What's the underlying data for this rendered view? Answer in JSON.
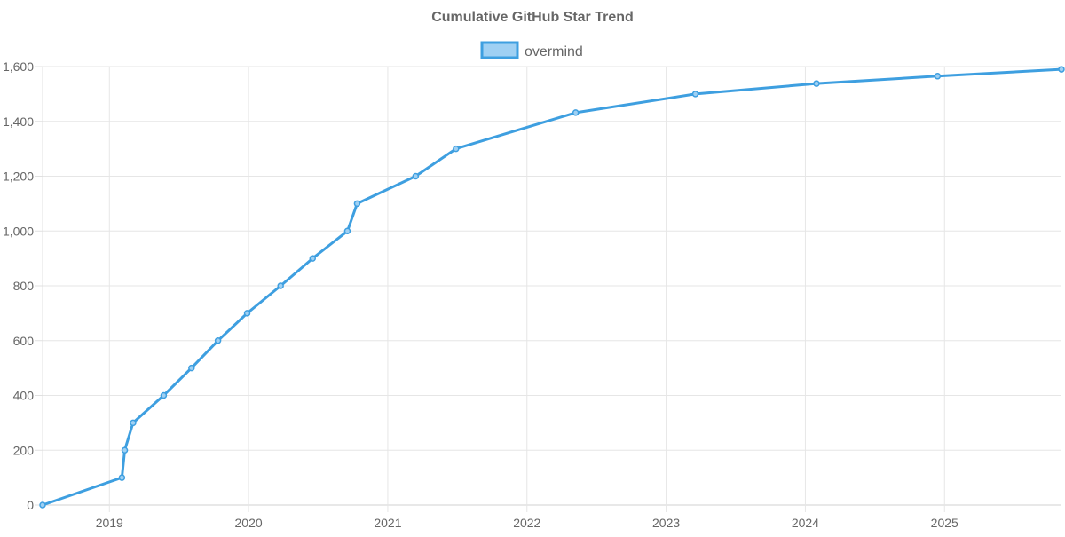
{
  "chart_data": {
    "type": "line",
    "title": "Cumulative GitHub Star Trend",
    "xlabel": "",
    "ylabel": "",
    "x_domain": [
      2018.52,
      2025.84
    ],
    "ylim": [
      0,
      1600
    ],
    "y_ticks": [
      0,
      200,
      400,
      600,
      800,
      1000,
      1200,
      1400,
      1600
    ],
    "y_tick_labels": [
      "0",
      "200",
      "400",
      "600",
      "800",
      "1,000",
      "1,200",
      "1,400",
      "1,600"
    ],
    "x_ticks": [
      2019,
      2020,
      2021,
      2022,
      2023,
      2024,
      2025
    ],
    "x_tick_labels": [
      "2019",
      "2020",
      "2021",
      "2022",
      "2023",
      "2024",
      "2025"
    ],
    "grid": true,
    "legend_position": "top-center",
    "series": [
      {
        "name": "overmind",
        "color": "#3e9fe0",
        "fill": "#9fd0f3",
        "points": [
          {
            "x": 2018.52,
            "y": 0
          },
          {
            "x": 2019.09,
            "y": 100
          },
          {
            "x": 2019.11,
            "y": 200
          },
          {
            "x": 2019.17,
            "y": 300
          },
          {
            "x": 2019.39,
            "y": 400
          },
          {
            "x": 2019.59,
            "y": 500
          },
          {
            "x": 2019.78,
            "y": 600
          },
          {
            "x": 2019.99,
            "y": 700
          },
          {
            "x": 2020.23,
            "y": 800
          },
          {
            "x": 2020.46,
            "y": 900
          },
          {
            "x": 2020.71,
            "y": 1000
          },
          {
            "x": 2020.78,
            "y": 1100
          },
          {
            "x": 2021.2,
            "y": 1200
          },
          {
            "x": 2021.49,
            "y": 1300
          },
          {
            "x": 2022.35,
            "y": 1432
          },
          {
            "x": 2023.21,
            "y": 1500
          },
          {
            "x": 2024.08,
            "y": 1538
          },
          {
            "x": 2024.95,
            "y": 1565
          },
          {
            "x": 2025.84,
            "y": 1590
          }
        ]
      }
    ]
  }
}
